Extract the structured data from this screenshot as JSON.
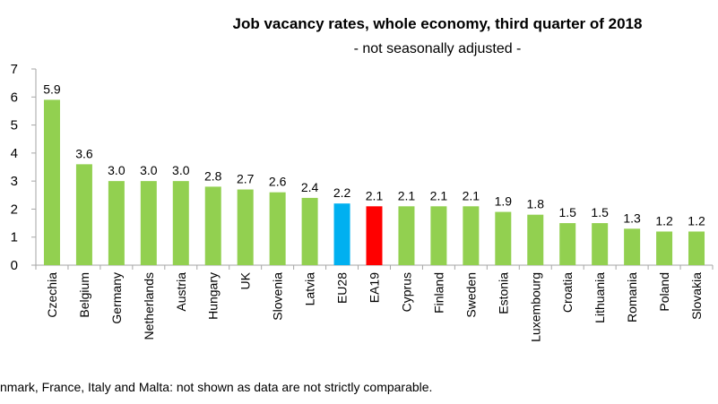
{
  "chart_data": {
    "type": "bar",
    "title": "Job vacancy rates, whole economy, third quarter of 2018",
    "subtitle": "- not seasonally adjusted -",
    "xlabel": "",
    "ylabel": "",
    "ylim": [
      0,
      7
    ],
    "yticks": [
      0,
      1,
      2,
      3,
      4,
      5,
      6,
      7
    ],
    "grid": false,
    "legend": "none",
    "categories": [
      "Czechia",
      "Belgium",
      "Germany",
      "Netherlands",
      "Austria",
      "Hungary",
      "UK",
      "Slovenia",
      "Latvia",
      "EU28",
      "EA19",
      "Cyprus",
      "Finland",
      "Sweden",
      "Estonia",
      "Luxembourg",
      "Croatia",
      "Lithuania",
      "Romania",
      "Poland",
      "Slovakia"
    ],
    "values": [
      5.9,
      3.6,
      3.0,
      3.0,
      3.0,
      2.8,
      2.7,
      2.6,
      2.4,
      2.2,
      2.1,
      2.1,
      2.1,
      2.1,
      1.9,
      1.8,
      1.5,
      1.5,
      1.3,
      1.2,
      1.2
    ],
    "value_labels": [
      "5.9",
      "3.6",
      "3.0",
      "3.0",
      "3.0",
      "2.8",
      "2.7",
      "2.6",
      "2.4",
      "2.2",
      "2.1",
      "2.1",
      "2.1",
      "2.1",
      "1.9",
      "1.8",
      "1.5",
      "1.5",
      "1.3",
      "1.2",
      "1.2"
    ],
    "colors": {
      "default": "#92d050",
      "EU28": "#00b0f0",
      "EA19": "#ff0000",
      "axis": "#a6a6a6"
    }
  },
  "footnote": "nmark, France, Italy and Malta: not shown as data are not strictly comparable."
}
